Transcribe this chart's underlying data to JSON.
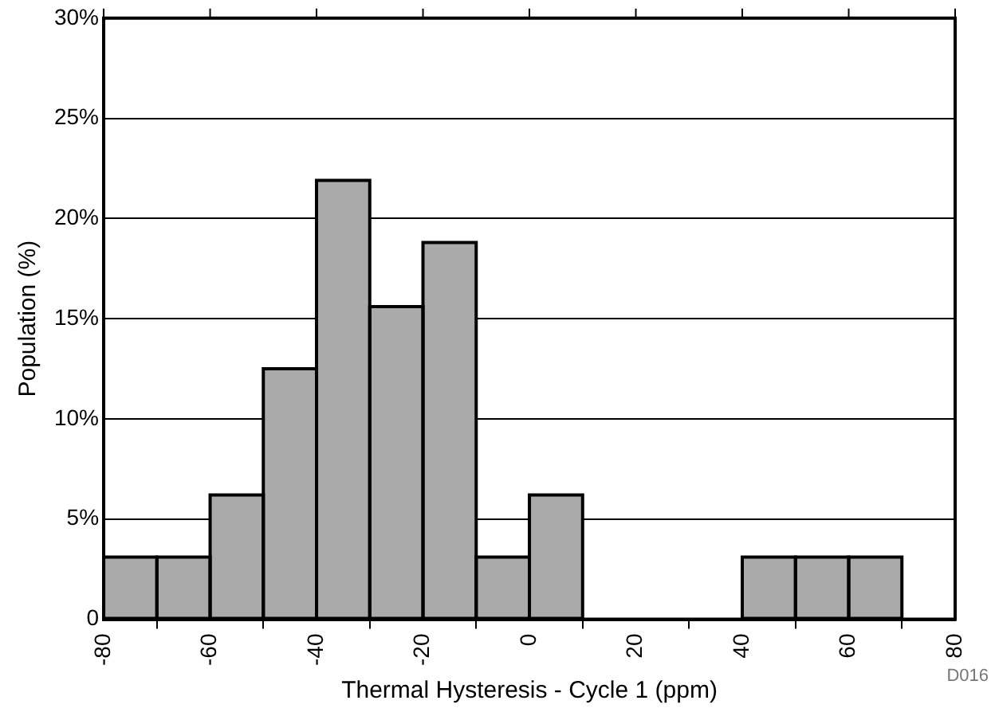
{
  "chart_data": {
    "type": "histogram",
    "xlabel": "Thermal Hysteresis - Cycle 1 (ppm)",
    "ylabel": "Population (%)",
    "bins": [
      -80,
      -70,
      -60,
      -50,
      -40,
      -30,
      -20,
      -10,
      0,
      10,
      20,
      30,
      40,
      50,
      60,
      70
    ],
    "values": [
      3.1,
      3.1,
      6.2,
      12.5,
      21.9,
      15.6,
      18.8,
      3.1,
      6.2,
      0,
      0,
      0,
      3.1,
      3.1,
      3.1
    ],
    "color": "#aaaaaa",
    "xlim": [
      -80,
      80
    ],
    "xticks": [
      -80,
      -60,
      -40,
      -20,
      0,
      20,
      40,
      60,
      80
    ],
    "ylim": [
      0,
      30
    ],
    "yticks": [
      {
        "value": 0,
        "label": "0"
      },
      {
        "value": 5,
        "label": "5%"
      },
      {
        "value": 10,
        "label": "10%"
      },
      {
        "value": 15,
        "label": "15%"
      },
      {
        "value": 20,
        "label": "20%"
      },
      {
        "value": 25,
        "label": "25%"
      },
      {
        "value": 30,
        "label": "30%"
      }
    ],
    "grid": "y",
    "legend": false,
    "annotations": [
      "D016"
    ]
  }
}
